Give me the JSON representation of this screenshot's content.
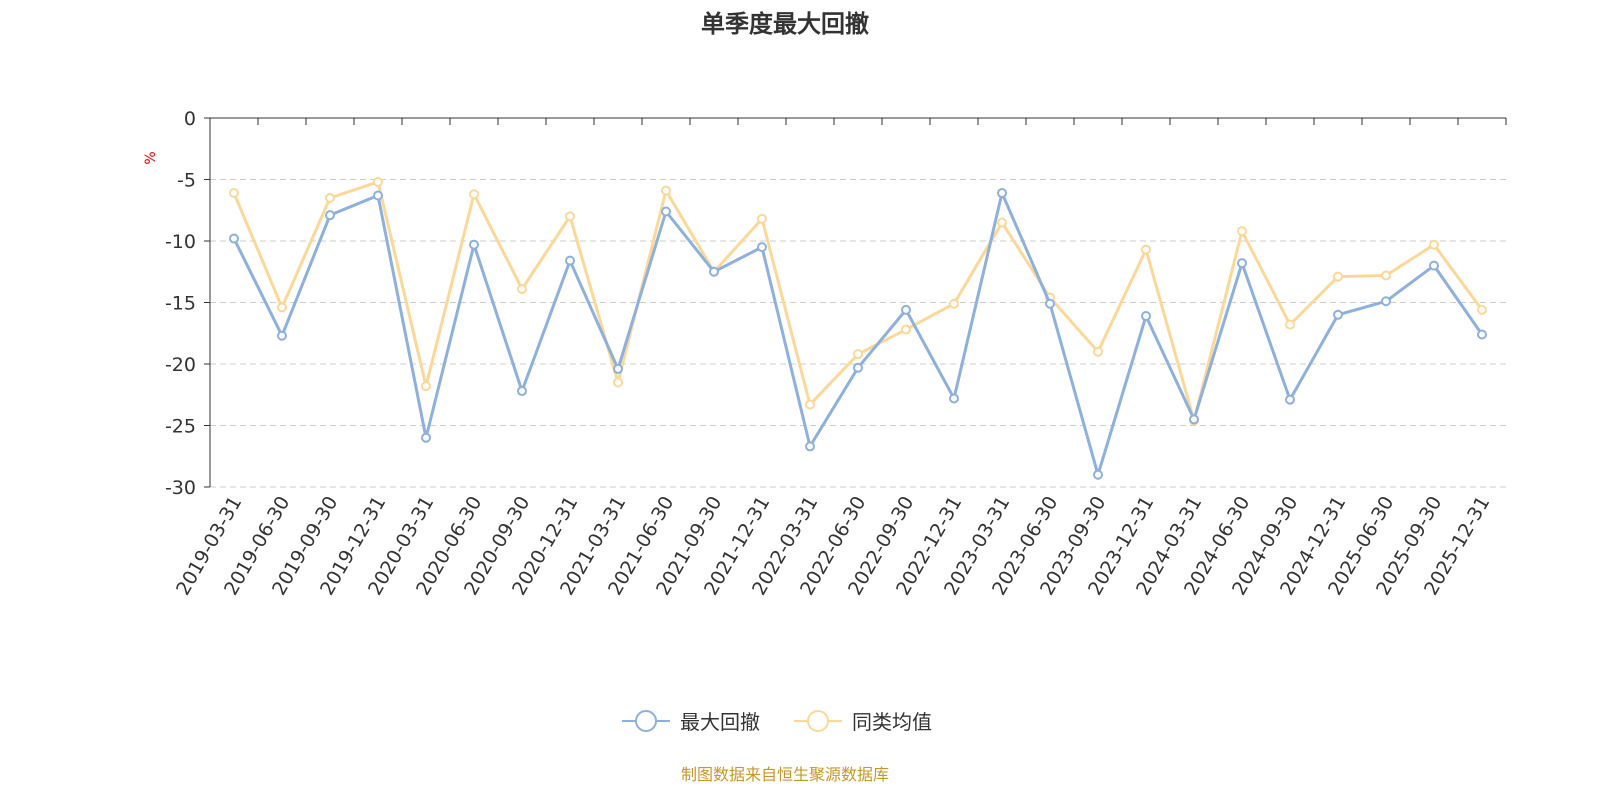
{
  "chart_data": {
    "type": "line",
    "title": "单季度最大回撤",
    "ylabel": "%",
    "ylim": [
      -30,
      0
    ],
    "yticks": [
      0,
      -5,
      -10,
      -15,
      -20,
      -25,
      -30
    ],
    "grid": true,
    "legend_position": "bottom",
    "categories": [
      "2019-03-31",
      "2019-06-30",
      "2019-09-30",
      "2019-12-31",
      "2020-03-31",
      "2020-06-30",
      "2020-09-30",
      "2020-12-31",
      "2021-03-31",
      "2021-06-30",
      "2021-09-30",
      "2021-12-31",
      "2022-03-31",
      "2022-06-30",
      "2022-09-30",
      "2022-12-31",
      "2023-03-31",
      "2023-06-30",
      "2023-09-30",
      "2023-12-31",
      "2024-03-31",
      "2024-06-30",
      "2024-09-30",
      "2024-12-31",
      "2025-06-30",
      "2025-09-30",
      "2025-12-31"
    ],
    "series": [
      {
        "name": "最大回撤",
        "color": "#8eb0dd",
        "values": [
          -9.8,
          -17.7,
          -7.9,
          -6.3,
          -26.0,
          -10.3,
          -22.2,
          -11.6,
          -20.4,
          -7.6,
          -12.5,
          -10.5,
          -26.7,
          -20.3,
          -15.6,
          -22.8,
          -6.1,
          -15.1,
          -29.0,
          -16.1,
          -24.5,
          -11.8,
          -22.9,
          -16.0,
          -14.9,
          -12.0,
          -17.6
        ]
      },
      {
        "name": "同类均值",
        "color": "#fcd898",
        "values": [
          -6.1,
          -15.4,
          -6.5,
          -5.2,
          -21.8,
          -6.2,
          -13.9,
          -8.0,
          -21.5,
          -5.9,
          -12.5,
          -8.2,
          -23.3,
          -19.2,
          -17.2,
          -15.1,
          -8.5,
          -14.6,
          -19.0,
          -10.7,
          -24.6,
          -9.2,
          -16.8,
          -12.9,
          -12.8,
          -10.3,
          -15.6
        ]
      }
    ]
  },
  "footer": "制图数据来自恒生聚源数据库"
}
